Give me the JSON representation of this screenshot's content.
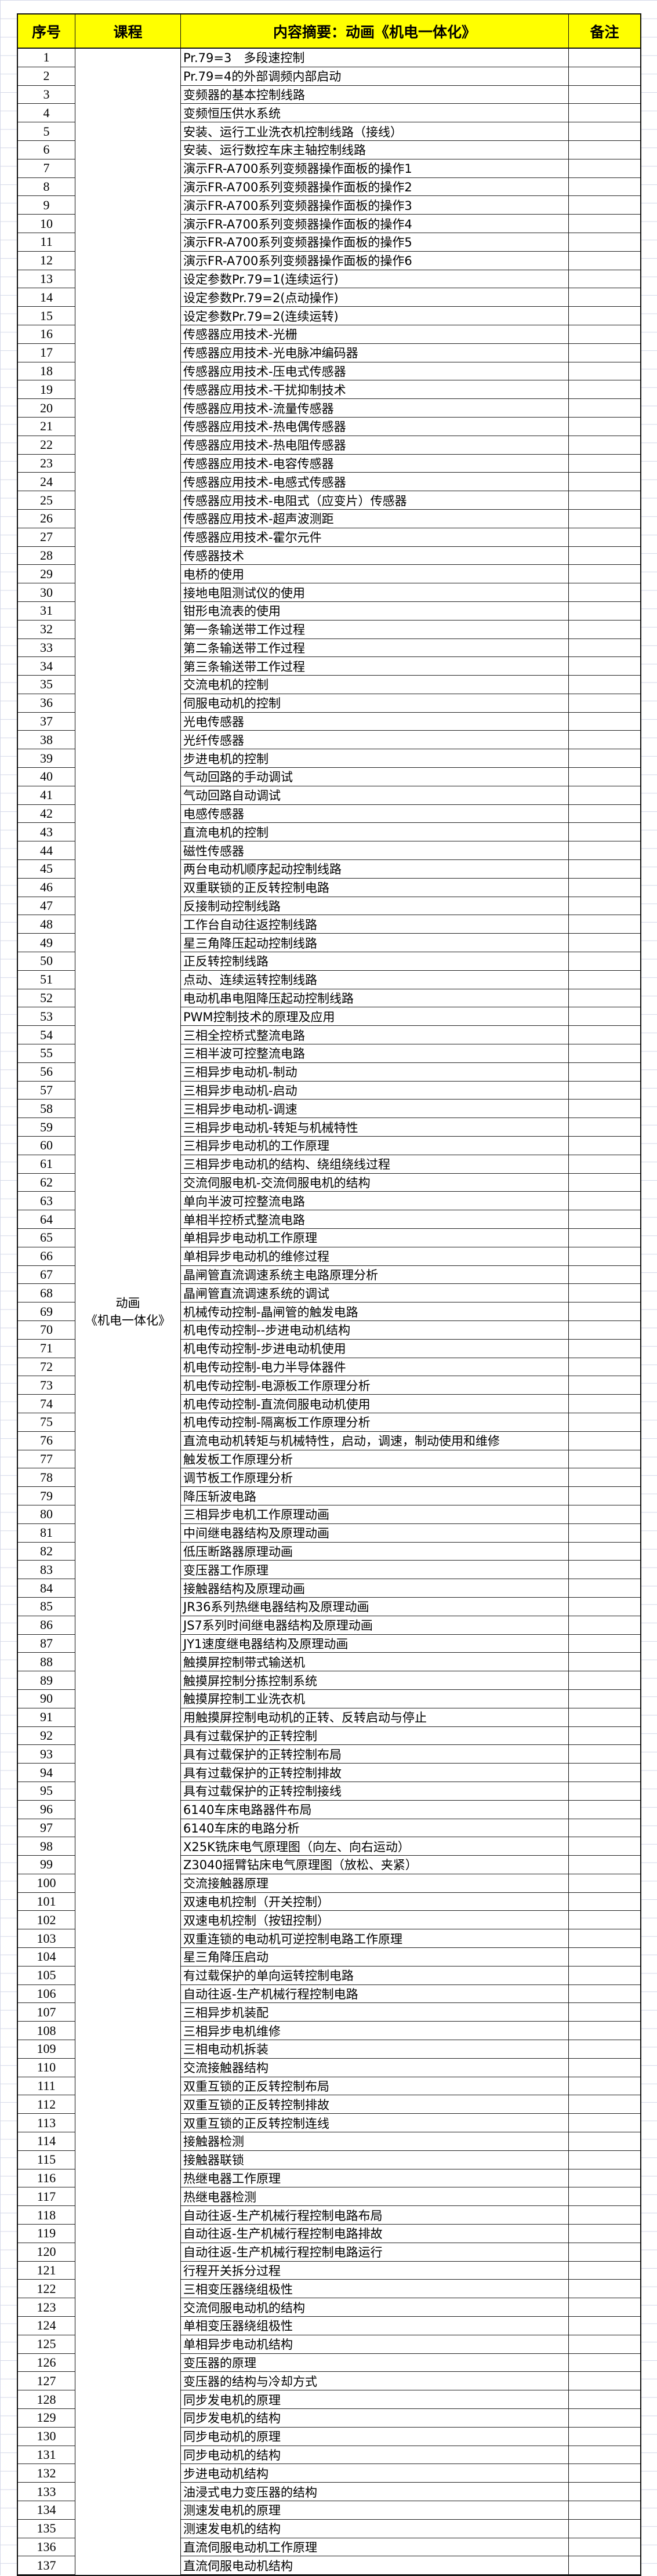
{
  "header": {
    "no": "序号",
    "course": "课程",
    "content": "内容摘要：动画《机电一体化》",
    "remark": "备注"
  },
  "course": {
    "line1": "动画",
    "line2": "《机电一体化》"
  },
  "colors": {
    "header_bg": "#ffff00",
    "border": "#111111"
  },
  "rows": [
    "Pr.79=3　多段速控制",
    "Pr.79=4的外部调频内部启动",
    "变频器的基本控制线路",
    "变频恒压供水系统",
    "安装、运行工业洗衣机控制线路（接线）",
    "安装、运行数控车床主轴控制线路",
    "演示FR-A700系列变频器操作面板的操作1",
    "演示FR-A700系列变频器操作面板的操作2",
    "演示FR-A700系列变频器操作面板的操作3",
    "演示FR-A700系列变频器操作面板的操作4",
    "演示FR-A700系列变频器操作面板的操作5",
    "演示FR-A700系列变频器操作面板的操作6",
    "设定参数Pr.79=1(连续运行)",
    "设定参数Pr.79=2(点动操作)",
    "设定参数Pr.79=2(连续运转)",
    "传感器应用技术-光栅",
    "传感器应用技术-光电脉冲编码器",
    "传感器应用技术-压电式传感器",
    "传感器应用技术-干扰抑制技术",
    "传感器应用技术-流量传感器",
    "传感器应用技术-热电偶传感器",
    "传感器应用技术-热电阻传感器",
    "传感器应用技术-电容传感器",
    "传感器应用技术-电感式传感器",
    "传感器应用技术-电阻式（应变片）传感器",
    "传感器应用技术-超声波测距",
    "传感器应用技术-霍尔元件",
    "传感器技术",
    "电桥的使用",
    "接地电阻测试仪的使用",
    "钳形电流表的使用",
    "第一条输送带工作过程",
    "第二条输送带工作过程",
    "第三条输送带工作过程",
    "交流电机的控制",
    "伺服电动机的控制",
    "光电传感器",
    "光纤传感器",
    "步进电机的控制",
    "气动回路的手动调试",
    "气动回路自动调试",
    "电感传感器",
    "直流电机的控制",
    "磁性传感器",
    "两台电动机顺序起动控制线路",
    "双重联锁的正反转控制电路",
    "反接制动控制线路",
    "工作台自动往返控制线路",
    "星三角降压起动控制线路",
    "正反转控制线路",
    "点动、连续运转控制线路",
    "电动机串电阻降压起动控制线路",
    "PWM控制技术的原理及应用",
    "三相全控桥式整流电路",
    "三相半波可控整流电路",
    "三相异步电动机-制动",
    "三相异步电动机-启动",
    "三相异步电动机-调速",
    "三相异步电动机-转矩与机械特性",
    "三相异步电动机的工作原理",
    "三相异步电动机的结构、绕组绕线过程",
    "交流伺服电机-交流伺服电机的结构",
    "单向半波可控整流电路",
    "单相半控桥式整流电路",
    "单相异步电动机工作原理",
    "单相异步电动机的维修过程",
    "晶闸管直流调速系统主电路原理分析",
    "晶闸管直流调速系统的调试",
    "机械传动控制-晶闸管的触发电路",
    "机电传动控制--步进电动机结构",
    "机电传动控制-步进电动机使用",
    "机电传动控制-电力半导体器件",
    "机电传动控制-电源板工作原理分析",
    "机电传动控制-直流伺服电动机使用",
    "机电传动控制-隔离板工作原理分析",
    "直流电动机转矩与机械特性，启动，调速，制动使用和维修",
    "触发板工作原理分析",
    "调节板工作原理分析",
    "降压斩波电路",
    "三相异步电机工作原理动画",
    "中间继电器结构及原理动画",
    "低压断路器原理动画",
    "变压器工作原理",
    "接触器结构及原理动画",
    "JR36系列热继电器结构及原理动画",
    "JS7系列时间继电器结构及原理动画",
    "JY1速度继电器结构及原理动画",
    "触摸屏控制带式输送机",
    "触摸屏控制分拣控制系统",
    "触摸屏控制工业洗衣机",
    "用触摸屏控制电动机的正转、反转启动与停止",
    "具有过载保护的正转控制",
    "具有过载保护的正转控制布局",
    "具有过载保护的正转控制排故",
    "具有过载保护的正转控制接线",
    "6140车床电路器件布局",
    "6140车床的电路分析",
    "X25K铣床电气原理图（向左、向右运动）",
    "Z3040摇臂钻床电气原理图（放松、夹紧）",
    "交流接触器原理",
    "双速电机控制（开关控制）",
    "双速电机控制（按钮控制）",
    "双重连锁的电动机可逆控制电路工作原理",
    "星三角降压启动",
    "有过载保护的单向运转控制电路",
    "自动往返-生产机械行程控制电路",
    "三相异步机装配",
    "三相异步电机维修",
    "三相电动机拆装",
    "交流接触器结构",
    "双重互锁的正反转控制布局",
    "双重互锁的正反转控制排故",
    "双重互锁的正反转控制连线",
    "接触器检测",
    "接触器联锁",
    "热继电器工作原理",
    "热继电器检测",
    "自动往返-生产机械行程控制电路布局",
    "自动往返-生产机械行程控制电路排故",
    "自动往返-生产机械行程控制电路运行",
    "行程开关拆分过程",
    "三相变压器绕组极性",
    "交流伺服电动机的结构",
    "单相变压器绕组极性",
    "单相异步电动机结构",
    "变压器的原理",
    "变压器的结构与冷却方式",
    "同步发电机的原理",
    "同步发电机的结构",
    "同步电动机的原理",
    "同步电动机的结构",
    "步进电动机结构",
    "油浸式电力变压器的结构",
    "测速发电机的原理",
    "测速发电机的结构",
    "直流伺服电动机工作原理",
    "直流伺服电动机结构"
  ]
}
